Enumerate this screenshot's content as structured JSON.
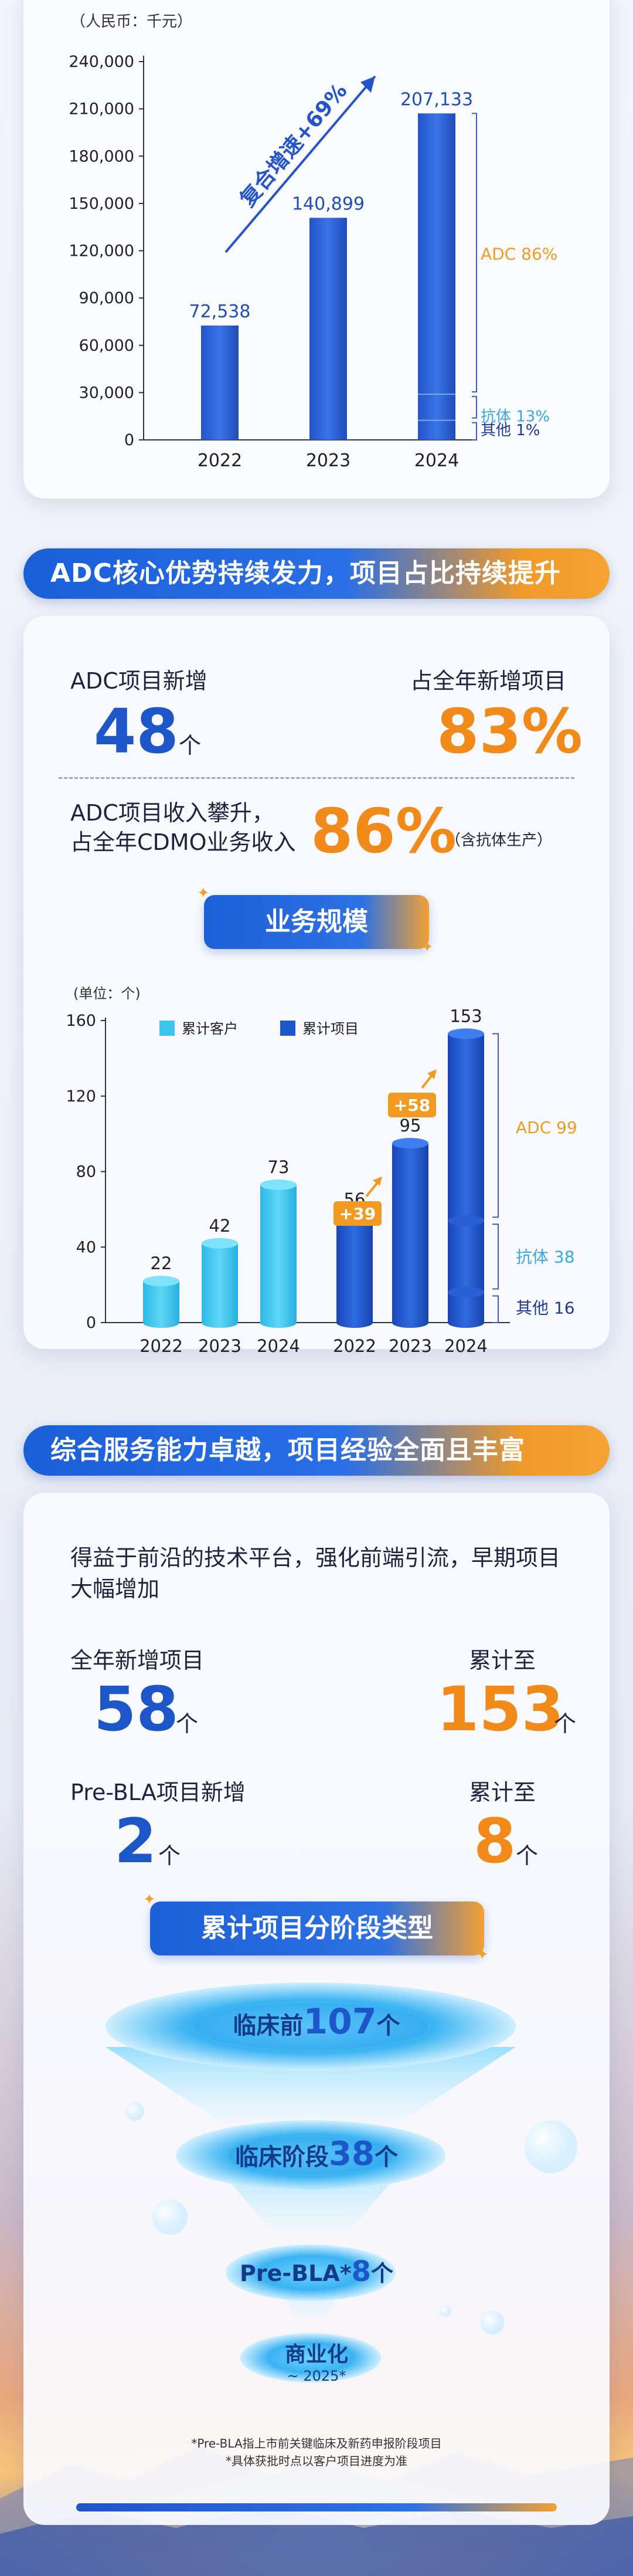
{
  "revenue_chart": {
    "unit": "（人民币：千元）",
    "growth": "复合增速+69%",
    "composition": [
      {
        "label": "ADC 86%",
        "color": "#f39a22"
      },
      {
        "label": "抗体 13%",
        "color": "#3aa8e0"
      },
      {
        "label": "其他 1%",
        "color": "#1d3a9a"
      }
    ]
  },
  "section1": {
    "banner": "ADC核心优势持续发力，项目占比持续提升",
    "adc_new_label": "ADC项目新增",
    "adc_new_value": "48",
    "adc_new_unit": "个",
    "share_label": "占全年新增项目",
    "share_value": "83%",
    "revenue_label_1": "ADC项目收入攀升，",
    "revenue_label_2": "占全年CDMO业务收入",
    "revenue_value": "86%",
    "revenue_note": "（含抗体生产）"
  },
  "scale": {
    "title": "业务规模",
    "composition": [
      {
        "label": "ADC 99",
        "color": "#f39a22"
      },
      {
        "label": "抗体 38",
        "color": "#3aa8e0"
      },
      {
        "label": "其他 16",
        "color": "#1d3a9a"
      }
    ],
    "increments": [
      "+39",
      "+58"
    ]
  },
  "section2": {
    "banner": "综合服务能力卓越，项目经验全面且丰富",
    "intro_1": "得益于前沿的技术平台，强化前端引流，早期项目",
    "intro_2": "大幅增加",
    "new_label": "全年新增项目",
    "new_value": "58",
    "total_label": "累计至",
    "total_value": "153",
    "bla_label": "Pre-BLA项目新增",
    "bla_value": "2",
    "bla_total_label": "累计至",
    "bla_total_value": "8",
    "unit": "个"
  },
  "stages": {
    "title": "累计项目分阶段类型",
    "levels": [
      {
        "name": "临床前",
        "value": "107",
        "unit": "个"
      },
      {
        "name": "临床阶段",
        "value": "38",
        "unit": "个"
      },
      {
        "name": "Pre-BLA*",
        "value": "8",
        "unit": "个"
      },
      {
        "name": "商业化",
        "sub": "~ 2025*"
      }
    ],
    "footnote_1": "*Pre-BLA指上市前关键临床及新药申报阶段项目",
    "footnote_2": "*具体获批时点以客户项目进度为准"
  },
  "chart_data": [
    {
      "type": "bar",
      "title": "",
      "ylabel": "（人民币：千元）",
      "categories": [
        "2022",
        "2023",
        "2024"
      ],
      "values": [
        72538,
        140899,
        207133
      ],
      "value_labels": [
        "72,538",
        "140,899",
        "207,133"
      ],
      "ylim": [
        0,
        240000
      ],
      "yticks": [
        0,
        30000,
        60000,
        90000,
        120000,
        150000,
        180000,
        210000,
        240000
      ],
      "ytick_labels": [
        "0",
        "30,000",
        "60,000",
        "90,000",
        "120,000",
        "150,000",
        "180,000",
        "210,000",
        "240,000"
      ]
    },
    {
      "type": "bar",
      "title": "",
      "ylabel": "(单位：个)",
      "categories": [
        "2022",
        "2023",
        "2024"
      ],
      "series": [
        {
          "name": "累计客户",
          "values": [
            22,
            42,
            73
          ],
          "color": "#3cc6ee"
        },
        {
          "name": "累计项目",
          "values": [
            56,
            95,
            153
          ],
          "color": "#1d56c9"
        }
      ],
      "ylim": [
        0,
        160
      ],
      "yticks": [
        0,
        40,
        80,
        120,
        160
      ]
    }
  ]
}
